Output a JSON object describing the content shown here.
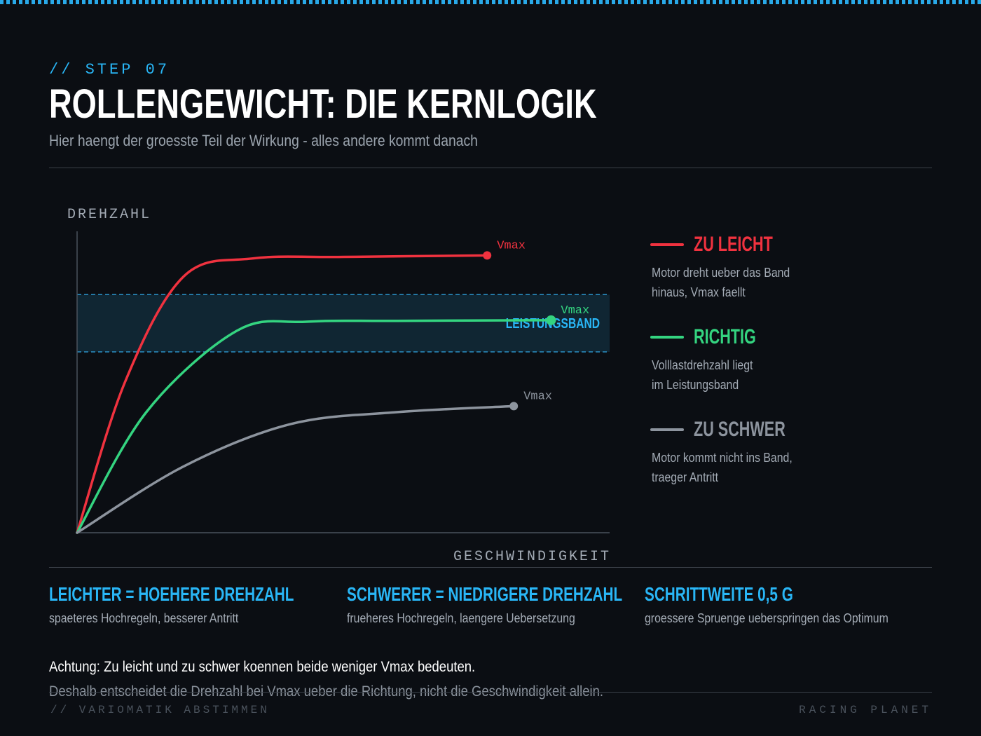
{
  "header": {
    "step": "// STEP 07",
    "title": "ROLLENGEWICHT: DIE KERNLOGIK",
    "subtitle": "Hier haengt der groesste Teil der Wirkung - alles andere kommt danach"
  },
  "colors": {
    "accent": "#29b6f6",
    "zu_leicht": "#f0323f",
    "richtig": "#34d480",
    "zu_schwer": "#8d949e",
    "band_fill": "#102633",
    "band_line": "#2a8fc4"
  },
  "chart_data": {
    "type": "line",
    "xlabel": "GESCHWINDIGKEIT",
    "ylabel": "DREHZAHL",
    "band_label": "LEISTUNGSBAND",
    "band": [
      0.6,
      0.79
    ],
    "xlim": [
      0,
      1
    ],
    "ylim": [
      0,
      1
    ],
    "series": [
      {
        "name": "ZU LEICHT",
        "color": "#f0323f",
        "end_label": "Vmax",
        "points": [
          [
            0,
            0
          ],
          [
            0.09,
            0.5
          ],
          [
            0.2,
            0.85
          ],
          [
            0.33,
            0.91
          ],
          [
            0.5,
            0.915
          ],
          [
            0.77,
            0.92
          ]
        ]
      },
      {
        "name": "RICHTIG",
        "color": "#34d480",
        "end_label": "Vmax",
        "points": [
          [
            0,
            0
          ],
          [
            0.13,
            0.4
          ],
          [
            0.3,
            0.67
          ],
          [
            0.43,
            0.7
          ],
          [
            0.6,
            0.703
          ],
          [
            0.89,
            0.705
          ]
        ]
      },
      {
        "name": "ZU SCHWER",
        "color": "#8d949e",
        "end_label": "Vmax",
        "points": [
          [
            0,
            0
          ],
          [
            0.2,
            0.22
          ],
          [
            0.4,
            0.36
          ],
          [
            0.6,
            0.4
          ],
          [
            0.82,
            0.42
          ]
        ]
      }
    ]
  },
  "legend": [
    {
      "title": "ZU LEICHT",
      "desc": [
        "Motor dreht ueber das Band",
        "hinaus, Vmax faellt"
      ],
      "color": "#f0323f"
    },
    {
      "title": "RICHTIG",
      "desc": [
        "Volllastdrehzahl liegt",
        "im Leistungsband"
      ],
      "color": "#34d480"
    },
    {
      "title": "ZU SCHWER",
      "desc": [
        "Motor kommt nicht ins Band,",
        "traeger Antritt"
      ],
      "color": "#8d949e"
    }
  ],
  "rules": [
    {
      "title": "LEICHTER = HOEHERE DREHZAHL",
      "desc": "spaeteres Hochregeln, besserer Antritt"
    },
    {
      "title": "SCHWERER = NIEDRIGERE DREHZAHL",
      "desc": "frueheres Hochregeln, laengere Uebersetzung"
    },
    {
      "title": "SCHRITTWEITE 0,5 G",
      "desc": "groessere Spruenge ueberspringen das Optimum"
    }
  ],
  "warning": {
    "line1": "Achtung: Zu leicht und zu schwer koennen beide weniger Vmax bedeuten.",
    "line2": "Deshalb entscheidet die Drehzahl bei Vmax ueber die Richtung, nicht die Geschwindigkeit allein."
  },
  "footer": {
    "left": "// VARIOMATIK ABSTIMMEN",
    "right": "RACING PLANET"
  }
}
